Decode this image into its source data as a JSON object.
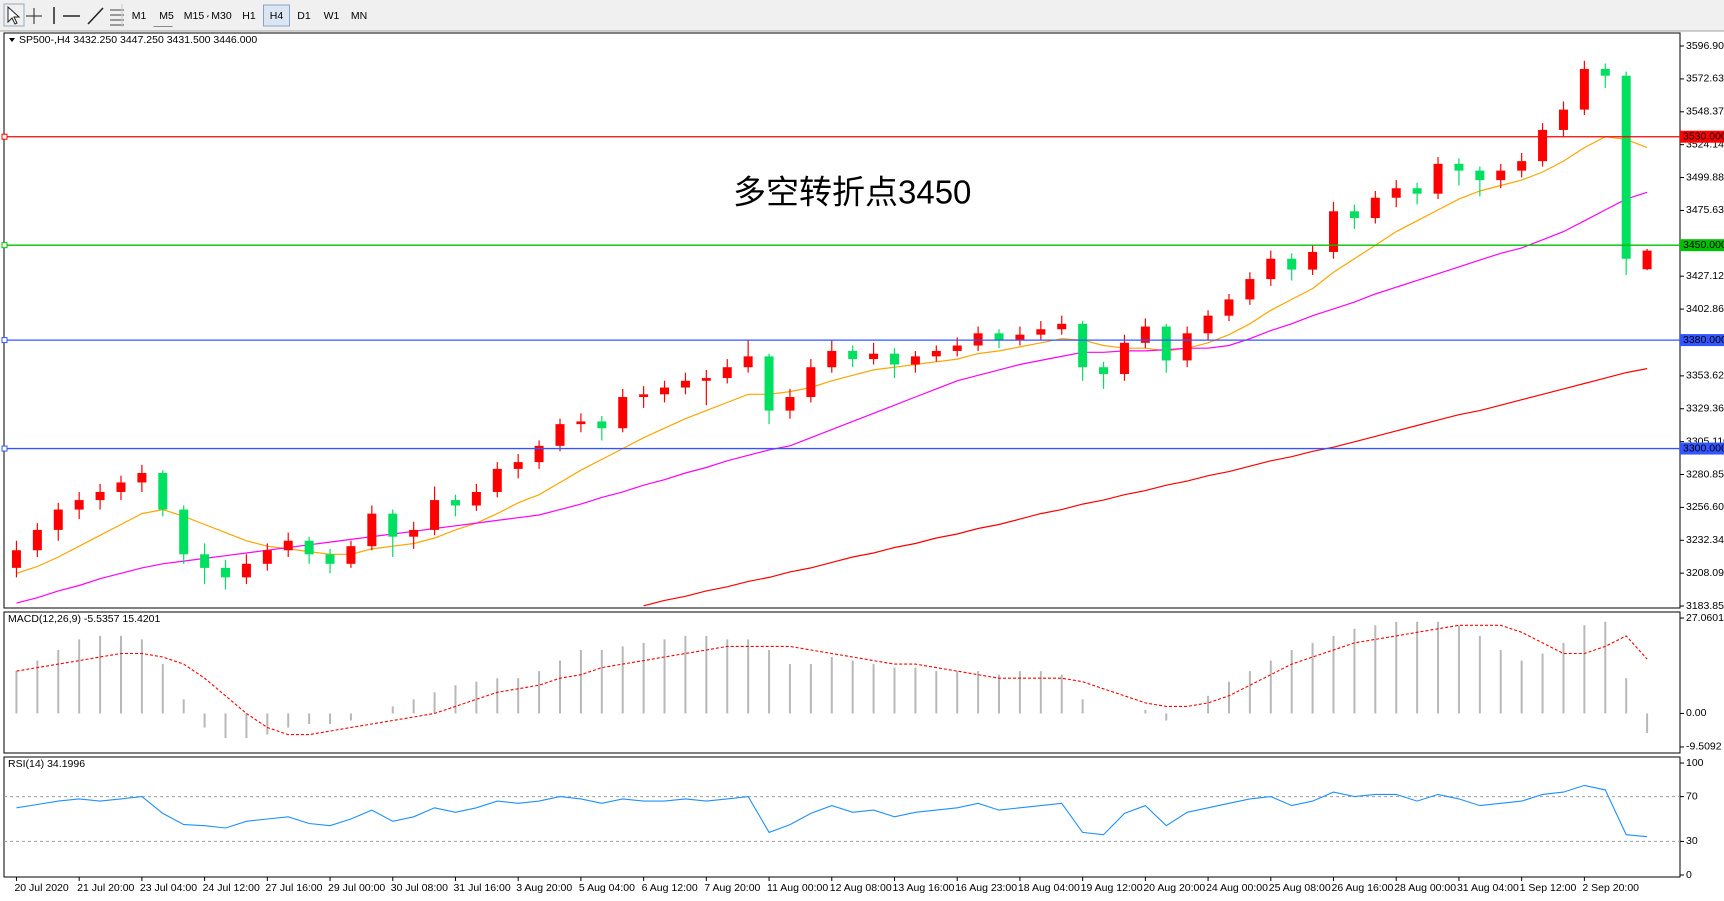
{
  "toolbar": {
    "timeframes": [
      "M1",
      "M5",
      "M15",
      "M30",
      "H1",
      "H4",
      "D1",
      "W1",
      "MN"
    ],
    "active_index": 5
  },
  "chart_data": [
    {
      "type": "candlestick",
      "title": "SP500-,H4  3432.250 3447.250 3431.500 3446.000",
      "up_color": "#ff0000",
      "down_color": "#00e060",
      "candles": [
        [
          3212,
          3232,
          3205,
          3225
        ],
        [
          3225,
          3245,
          3220,
          3240
        ],
        [
          3240,
          3260,
          3232,
          3255
        ],
        [
          3255,
          3268,
          3248,
          3262
        ],
        [
          3262,
          3274,
          3255,
          3268
        ],
        [
          3268,
          3280,
          3262,
          3275
        ],
        [
          3275,
          3288,
          3268,
          3282
        ],
        [
          3282,
          3284,
          3250,
          3255
        ],
        [
          3255,
          3258,
          3215,
          3222
        ],
        [
          3222,
          3230,
          3200,
          3212
        ],
        [
          3212,
          3218,
          3196,
          3205
        ],
        [
          3205,
          3222,
          3200,
          3215
        ],
        [
          3215,
          3230,
          3210,
          3225
        ],
        [
          3225,
          3238,
          3220,
          3232
        ],
        [
          3232,
          3235,
          3215,
          3222
        ],
        [
          3222,
          3226,
          3208,
          3215
        ],
        [
          3215,
          3232,
          3212,
          3228
        ],
        [
          3228,
          3258,
          3225,
          3252
        ],
        [
          3252,
          3255,
          3220,
          3235
        ],
        [
          3235,
          3246,
          3226,
          3240
        ],
        [
          3240,
          3272,
          3236,
          3262
        ],
        [
          3262,
          3266,
          3250,
          3258
        ],
        [
          3258,
          3274,
          3254,
          3268
        ],
        [
          3268,
          3290,
          3264,
          3285
        ],
        [
          3285,
          3296,
          3278,
          3290
        ],
        [
          3290,
          3306,
          3285,
          3302
        ],
        [
          3302,
          3322,
          3298,
          3318
        ],
        [
          3318,
          3326,
          3312,
          3320
        ],
        [
          3320,
          3324,
          3306,
          3315
        ],
        [
          3315,
          3344,
          3312,
          3338
        ],
        [
          3338,
          3346,
          3330,
          3340
        ],
        [
          3340,
          3350,
          3334,
          3345
        ],
        [
          3345,
          3356,
          3340,
          3350
        ],
        [
          3350,
          3358,
          3332,
          3352
        ],
        [
          3352,
          3366,
          3348,
          3360
        ],
        [
          3360,
          3380,
          3356,
          3368
        ],
        [
          3368,
          3370,
          3318,
          3328
        ],
        [
          3328,
          3344,
          3322,
          3338
        ],
        [
          3338,
          3366,
          3334,
          3360
        ],
        [
          3360,
          3380,
          3356,
          3372
        ],
        [
          3372,
          3376,
          3360,
          3366
        ],
        [
          3366,
          3378,
          3362,
          3370
        ],
        [
          3370,
          3374,
          3352,
          3362
        ],
        [
          3362,
          3372,
          3356,
          3368
        ],
        [
          3368,
          3376,
          3364,
          3372
        ],
        [
          3372,
          3382,
          3368,
          3376
        ],
        [
          3376,
          3390,
          3372,
          3385
        ],
        [
          3385,
          3388,
          3374,
          3380
        ],
        [
          3380,
          3390,
          3376,
          3384
        ],
        [
          3384,
          3394,
          3380,
          3388
        ],
        [
          3388,
          3398,
          3384,
          3392
        ],
        [
          3392,
          3394,
          3350,
          3360
        ],
        [
          3360,
          3364,
          3344,
          3355
        ],
        [
          3355,
          3384,
          3350,
          3378
        ],
        [
          3378,
          3396,
          3374,
          3390
        ],
        [
          3390,
          3392,
          3356,
          3365
        ],
        [
          3365,
          3390,
          3360,
          3385
        ],
        [
          3385,
          3402,
          3380,
          3398
        ],
        [
          3398,
          3414,
          3394,
          3410
        ],
        [
          3410,
          3430,
          3406,
          3425
        ],
        [
          3425,
          3446,
          3420,
          3440
        ],
        [
          3440,
          3444,
          3424,
          3432
        ],
        [
          3432,
          3450,
          3428,
          3445
        ],
        [
          3445,
          3482,
          3440,
          3475
        ],
        [
          3475,
          3480,
          3462,
          3470
        ],
        [
          3470,
          3490,
          3466,
          3485
        ],
        [
          3485,
          3498,
          3478,
          3492
        ],
        [
          3492,
          3496,
          3480,
          3488
        ],
        [
          3488,
          3515,
          3484,
          3510
        ],
        [
          3510,
          3514,
          3494,
          3505
        ],
        [
          3505,
          3508,
          3486,
          3498
        ],
        [
          3498,
          3510,
          3492,
          3505
        ],
        [
          3505,
          3518,
          3500,
          3512
        ],
        [
          3512,
          3540,
          3508,
          3535
        ],
        [
          3535,
          3556,
          3530,
          3550
        ],
        [
          3550,
          3586,
          3546,
          3580
        ],
        [
          3580,
          3584,
          3566,
          3575
        ],
        [
          3575,
          3578,
          3428,
          3440
        ],
        [
          3432.25,
          3447.25,
          3431.5,
          3446
        ]
      ],
      "lines": [
        {
          "color": "#ffa500",
          "values": [
            3208,
            3213,
            3220,
            3228,
            3236,
            3244,
            3252,
            3255,
            3250,
            3244,
            3238,
            3232,
            3228,
            3226,
            3224,
            3222,
            3222,
            3226,
            3228,
            3230,
            3234,
            3240,
            3245,
            3252,
            3260,
            3266,
            3275,
            3284,
            3292,
            3300,
            3308,
            3315,
            3322,
            3328,
            3334,
            3340,
            3340,
            3342,
            3345,
            3350,
            3354,
            3358,
            3360,
            3362,
            3364,
            3366,
            3370,
            3372,
            3375,
            3378,
            3381,
            3380,
            3376,
            3374,
            3374,
            3372,
            3374,
            3378,
            3384,
            3392,
            3402,
            3410,
            3418,
            3430,
            3440,
            3450,
            3460,
            3468,
            3476,
            3484,
            3490,
            3494,
            3498,
            3504,
            3512,
            3522,
            3530,
            3528,
            3522
          ]
        },
        {
          "color": "#ff00ff",
          "values": [
            3186,
            3190,
            3195,
            3199,
            3204,
            3208,
            3212,
            3215,
            3217,
            3219,
            3221,
            3223,
            3225,
            3227,
            3229,
            3231,
            3233,
            3235,
            3237,
            3239,
            3241,
            3243,
            3245,
            3247,
            3249,
            3251,
            3255,
            3259,
            3264,
            3268,
            3273,
            3277,
            3282,
            3286,
            3291,
            3295,
            3299,
            3302,
            3308,
            3314,
            3320,
            3326,
            3332,
            3338,
            3344,
            3350,
            3354,
            3358,
            3362,
            3365,
            3368,
            3371,
            3371,
            3372,
            3372,
            3373,
            3374,
            3374,
            3376,
            3381,
            3387,
            3392,
            3398,
            3403,
            3408,
            3414,
            3419,
            3424,
            3429,
            3434,
            3439,
            3444,
            3448,
            3454,
            3460,
            3468,
            3476,
            3484,
            3489
          ]
        },
        {
          "color": "#ff0000",
          "values": [
            null,
            null,
            null,
            null,
            null,
            null,
            null,
            null,
            null,
            null,
            null,
            null,
            null,
            null,
            null,
            null,
            null,
            null,
            null,
            null,
            null,
            null,
            null,
            null,
            null,
            null,
            null,
            null,
            null,
            null,
            3184,
            3188,
            3191,
            3195,
            3198,
            3202,
            3205,
            3209,
            3212,
            3216,
            3220,
            3223,
            3227,
            3230,
            3234,
            3237,
            3241,
            3244,
            3248,
            3252,
            3255,
            3259,
            3262,
            3266,
            3269,
            3273,
            3276,
            3280,
            3283,
            3287,
            3291,
            3294,
            3298,
            3301,
            3305,
            3309,
            3313,
            3317,
            3321,
            3325,
            3328,
            3332,
            3336,
            3340,
            3344,
            3348,
            3352,
            3356,
            3359
          ]
        }
      ],
      "levels": [
        {
          "value": 3530,
          "label": "3530.000",
          "color": "#ff0000"
        },
        {
          "value": 3450,
          "label": "3450.000",
          "color": "#00c000"
        },
        {
          "value": 3380,
          "label": "3380.000",
          "color": "#3355ff"
        },
        {
          "value": 3300,
          "label": "3300.000",
          "color": "#3355ff"
        }
      ],
      "annotation": {
        "text": "多空转折点3450",
        "color": "#ff0000"
      },
      "ylim": [
        3182.4,
        3606.5
      ],
      "yticks": [
        3596.905,
        {
          "value": 3572.63,
          "label": "3572.630"
        },
        3548.375,
        {
          "value": 3524.14,
          "label": "3524.140"
        },
        3499.885,
        {
          "value": 3475.63,
          "label": "3475.630"
        },
        {
          "value": 3427.12,
          "label": "3427.120"
        },
        3402.865,
        {
          "value": 3353.62,
          "label": "3353.620"
        },
        3329.365,
        {
          "value": 3305.11,
          "label": "3305.110"
        },
        3280.855,
        {
          "value": 3256.6,
          "label": "3256.600"
        },
        3232.345,
        {
          "value": 3208.09,
          "label": "3208.090"
        },
        3183.853
      ],
      "x_labels": [
        "20 Jul 2020",
        "21 Jul 20:00",
        "23 Jul 04:00",
        "24 Jul 12:00",
        "27 Jul 16:00",
        "29 Jul 00:00",
        "30 Jul 08:00",
        "31 Jul 16:00",
        "3 Aug 20:00",
        "5 Aug 04:00",
        "6 Aug 12:00",
        "7 Aug 20:00",
        "11 Aug 00:00",
        "12 Aug 08:00",
        "13 Aug 16:00",
        "16 Aug 23:00",
        "18 Aug 04:00",
        "19 Aug 12:00",
        "20 Aug 20:00",
        "24 Aug 00:00",
        "25 Aug 08:00",
        "26 Aug 16:00",
        "28 Aug 00:00",
        "31 Aug 04:00",
        "1 Sep 12:00",
        "2 Sep 20:00"
      ]
    },
    {
      "type": "macd",
      "title": "MACD(12,26,9) -5.5357 15.4201",
      "hist_color": "#b8b8b8",
      "signal_color": "#ff0000",
      "histogram": [
        12,
        15,
        18,
        21,
        22,
        22,
        21,
        14,
        4,
        -4,
        -7,
        -7,
        -6,
        -4,
        -3,
        -3,
        -2,
        0,
        2,
        4,
        6,
        8,
        9,
        10,
        10,
        12,
        15,
        18,
        18,
        19,
        20,
        21,
        22,
        22,
        21,
        21,
        18,
        14,
        14,
        16,
        15,
        14,
        13,
        13,
        12,
        12,
        12,
        11,
        12,
        12,
        11,
        4,
        0,
        0,
        1,
        -2,
        0,
        5,
        9,
        12,
        15,
        18,
        20,
        22,
        24,
        25,
        26,
        26,
        26,
        25,
        22,
        18,
        15,
        17,
        20,
        25,
        26,
        10,
        -5.5357
      ],
      "signal": [
        12,
        13,
        14,
        15,
        16,
        17,
        17,
        16,
        14,
        10,
        5,
        0,
        -4,
        -6,
        -6,
        -5,
        -4,
        -3,
        -2,
        -1,
        0,
        2,
        4,
        6,
        7,
        8,
        10,
        11,
        13,
        14,
        15,
        16,
        17,
        18,
        19,
        19,
        19,
        19,
        18,
        17,
        16,
        15,
        14,
        14,
        13,
        12,
        11,
        10,
        10,
        10,
        10,
        9,
        7,
        5,
        3,
        2,
        2,
        3,
        5,
        8,
        11,
        14,
        16,
        18,
        20,
        21,
        22,
        23,
        24,
        25,
        25,
        25,
        23,
        20,
        17,
        17,
        19,
        22,
        15.4201
      ],
      "ylim": [
        -11.22,
        28.77
      ],
      "yticks": [
        27.0601,
        {
          "value": 0,
          "label": "0.00"
        },
        -9.5092
      ]
    },
    {
      "type": "rsi",
      "title": "RSI(14) 34.1996",
      "color": "#1e90ff",
      "values": [
        60,
        63,
        66,
        68,
        66,
        68,
        70,
        55,
        45,
        44,
        42,
        48,
        50,
        52,
        46,
        44,
        50,
        58,
        48,
        52,
        60,
        56,
        60,
        66,
        64,
        66,
        70,
        68,
        64,
        68,
        66,
        66,
        68,
        66,
        68,
        70,
        38,
        45,
        55,
        62,
        56,
        58,
        52,
        56,
        58,
        60,
        64,
        58,
        60,
        62,
        64,
        38,
        36,
        55,
        62,
        44,
        56,
        60,
        64,
        68,
        70,
        62,
        66,
        74,
        70,
        72,
        72,
        66,
        72,
        68,
        62,
        64,
        66,
        72,
        74,
        80,
        76,
        36,
        34.1996
      ],
      "levels": [
        70,
        30
      ],
      "ylim": [
        -1.8,
        105.4
      ],
      "yticks": [
        100,
        70,
        30,
        0
      ]
    }
  ]
}
